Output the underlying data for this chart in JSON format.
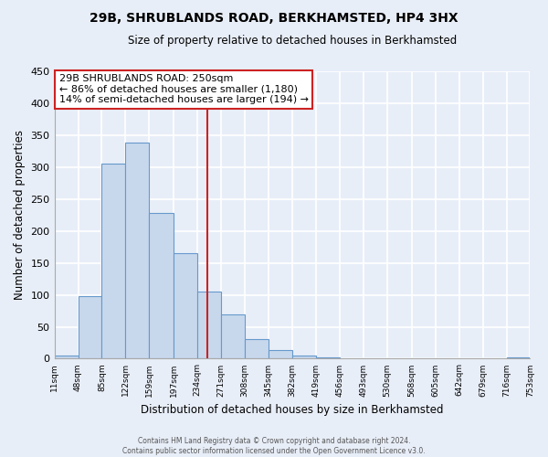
{
  "title": "29B, SHRUBLANDS ROAD, BERKHAMSTED, HP4 3HX",
  "subtitle": "Size of property relative to detached houses in Berkhamsted",
  "xlabel": "Distribution of detached houses by size in Berkhamsted",
  "ylabel": "Number of detached properties",
  "bar_edges": [
    11,
    48,
    85,
    122,
    159,
    197,
    234,
    271,
    308,
    345,
    382,
    419,
    456,
    493,
    530,
    568,
    605,
    642,
    679,
    716,
    753
  ],
  "bar_heights": [
    5,
    98,
    305,
    338,
    228,
    165,
    105,
    70,
    30,
    13,
    5,
    2,
    0,
    0,
    0,
    0,
    0,
    0,
    0,
    2
  ],
  "bar_color": "#c8d8ec",
  "bar_edge_color": "#6699cc",
  "vline_x": 250,
  "vline_color": "#cc2222",
  "ylim": [
    0,
    450
  ],
  "yticks": [
    0,
    50,
    100,
    150,
    200,
    250,
    300,
    350,
    400,
    450
  ],
  "tick_labels": [
    "11sqm",
    "48sqm",
    "85sqm",
    "122sqm",
    "159sqm",
    "197sqm",
    "234sqm",
    "271sqm",
    "308sqm",
    "345sqm",
    "382sqm",
    "419sqm",
    "456sqm",
    "493sqm",
    "530sqm",
    "568sqm",
    "605sqm",
    "642sqm",
    "679sqm",
    "716sqm",
    "753sqm"
  ],
  "annotation_title": "29B SHRUBLANDS ROAD: 250sqm",
  "annotation_line1": "← 86% of detached houses are smaller (1,180)",
  "annotation_line2": "14% of semi-detached houses are larger (194) →",
  "annotation_box_color": "#ffffff",
  "annotation_box_edge_color": "#cc2222",
  "footer_line1": "Contains HM Land Registry data © Crown copyright and database right 2024.",
  "footer_line2": "Contains public sector information licensed under the Open Government Licence v3.0.",
  "background_color": "#e8eef8",
  "grid_color": "#ffffff"
}
